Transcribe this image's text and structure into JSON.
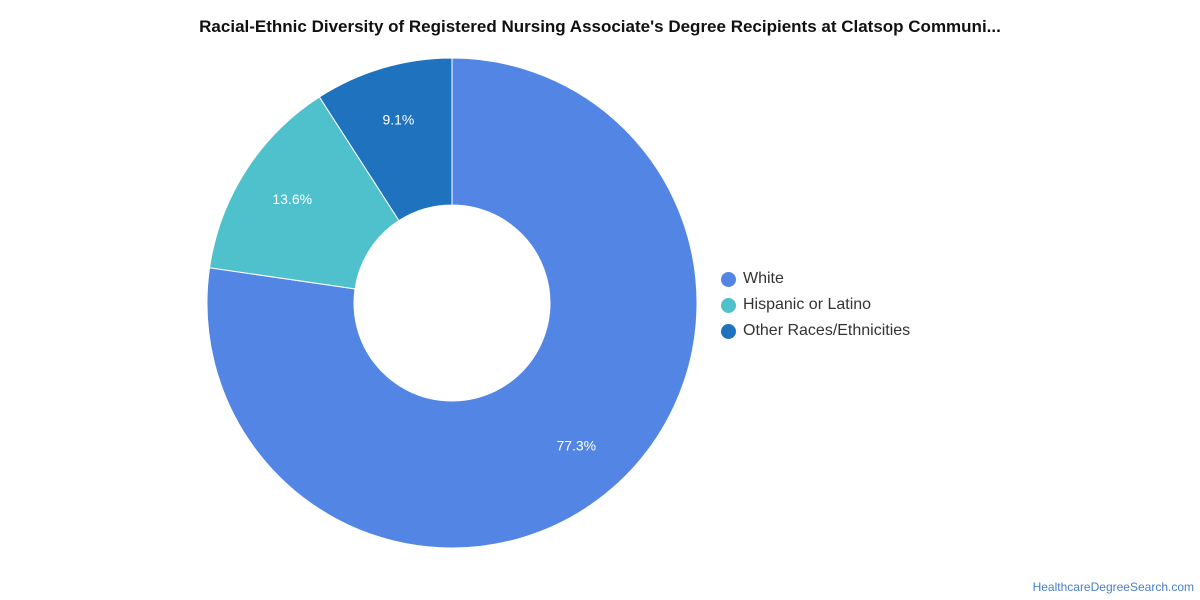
{
  "chart_data": {
    "type": "pie",
    "title": "Racial-Ethnic Diversity of Registered Nursing Associate's Degree Recipients at Clatsop Communi...",
    "donut": true,
    "legend_position": "right",
    "slices": [
      {
        "name": "White",
        "value": 77.3,
        "label": "77.3%",
        "color": "#5386e4"
      },
      {
        "name": "Hispanic or Latino",
        "value": 13.6,
        "label": "13.6%",
        "color": "#4fc1cc"
      },
      {
        "name": "Other Races/Ethnicities",
        "value": 9.1,
        "label": "9.1%",
        "color": "#1f72bd"
      }
    ]
  },
  "watermark": "HealthcareDegreeSearch.com"
}
